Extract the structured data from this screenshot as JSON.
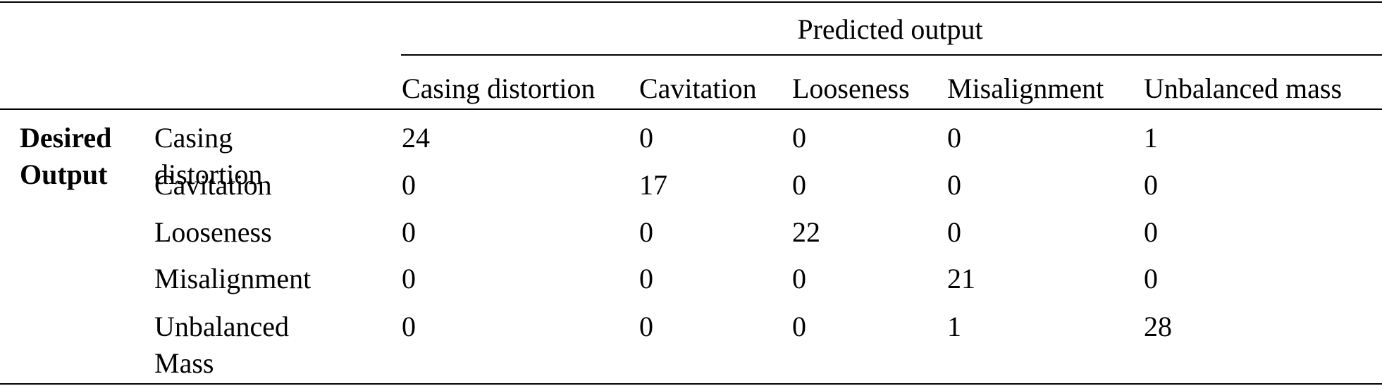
{
  "header": {
    "title": "Predicted output",
    "columns": [
      "Casing distortion",
      "Cavitation",
      "Looseness",
      "Misalignment",
      "Unbalanced mass"
    ]
  },
  "row_group": "Desired Output",
  "rows": [
    {
      "label": "Casing distortion",
      "values": [
        24,
        0,
        0,
        0,
        1
      ]
    },
    {
      "label": "Cavitation",
      "values": [
        0,
        17,
        0,
        0,
        0
      ]
    },
    {
      "label": "Looseness",
      "values": [
        0,
        0,
        22,
        0,
        0
      ]
    },
    {
      "label": "Misalignment",
      "values": [
        0,
        0,
        0,
        21,
        0
      ]
    },
    {
      "label": "Unbalanced Mass",
      "values": [
        0,
        0,
        0,
        1,
        28
      ]
    }
  ]
}
